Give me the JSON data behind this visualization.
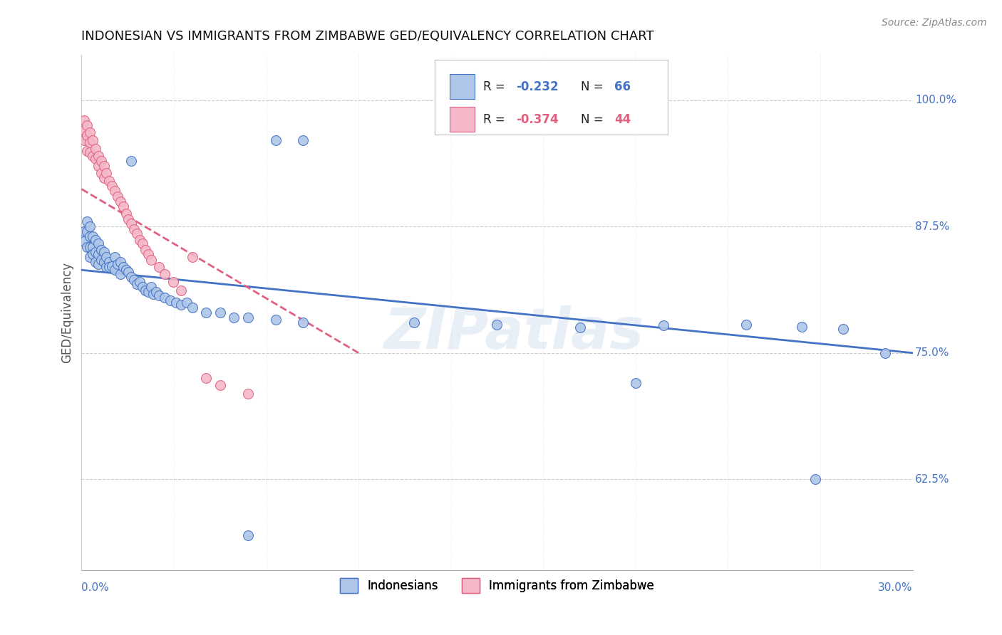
{
  "title": "INDONESIAN VS IMMIGRANTS FROM ZIMBABWE GED/EQUIVALENCY CORRELATION CHART",
  "source": "Source: ZipAtlas.com",
  "ylabel": "GED/Equivalency",
  "ytick_labels": [
    "62.5%",
    "75.0%",
    "87.5%",
    "100.0%"
  ],
  "ytick_values": [
    0.625,
    0.75,
    0.875,
    1.0
  ],
  "xlim": [
    0.0,
    0.3
  ],
  "ylim": [
    0.535,
    1.045
  ],
  "color_blue": "#aec6e8",
  "color_pink": "#f5b8c8",
  "color_blue_dark": "#4472c4",
  "color_pink_dark": "#e06080",
  "watermark": "ZIPatlas",
  "indonesians_x": [
    0.001,
    0.001,
    0.002,
    0.002,
    0.002,
    0.003,
    0.003,
    0.003,
    0.003,
    0.004,
    0.004,
    0.004,
    0.005,
    0.005,
    0.005,
    0.006,
    0.006,
    0.006,
    0.007,
    0.007,
    0.008,
    0.008,
    0.009,
    0.009,
    0.01,
    0.01,
    0.011,
    0.012,
    0.012,
    0.013,
    0.014,
    0.014,
    0.015,
    0.016,
    0.017,
    0.018,
    0.019,
    0.02,
    0.021,
    0.022,
    0.023,
    0.024,
    0.025,
    0.026,
    0.027,
    0.028,
    0.03,
    0.032,
    0.034,
    0.036,
    0.038,
    0.04,
    0.045,
    0.05,
    0.055,
    0.06,
    0.07,
    0.08,
    0.12,
    0.15,
    0.18,
    0.21,
    0.24,
    0.26,
    0.275,
    0.29
  ],
  "indonesians_y": [
    0.87,
    0.86,
    0.88,
    0.87,
    0.855,
    0.875,
    0.865,
    0.855,
    0.845,
    0.865,
    0.855,
    0.848,
    0.862,
    0.85,
    0.84,
    0.858,
    0.848,
    0.838,
    0.852,
    0.842,
    0.85,
    0.84,
    0.845,
    0.835,
    0.84,
    0.835,
    0.836,
    0.845,
    0.832,
    0.838,
    0.84,
    0.828,
    0.835,
    0.832,
    0.83,
    0.825,
    0.822,
    0.818,
    0.82,
    0.815,
    0.812,
    0.81,
    0.815,
    0.808,
    0.81,
    0.807,
    0.805,
    0.802,
    0.8,
    0.798,
    0.8,
    0.795,
    0.79,
    0.79,
    0.785,
    0.785,
    0.783,
    0.78,
    0.78,
    0.778,
    0.775,
    0.777,
    0.778,
    0.776,
    0.774,
    0.75
  ],
  "indonesians_y_special": [
    0.96,
    0.94,
    0.96,
    0.96,
    0.72,
    0.625,
    0.57
  ],
  "indonesians_x_special": [
    0.002,
    0.018,
    0.07,
    0.08,
    0.2,
    0.265,
    0.06
  ],
  "zimbabwe_x": [
    0.001,
    0.001,
    0.001,
    0.002,
    0.002,
    0.002,
    0.003,
    0.003,
    0.003,
    0.004,
    0.004,
    0.005,
    0.005,
    0.006,
    0.006,
    0.007,
    0.007,
    0.008,
    0.008,
    0.009,
    0.01,
    0.011,
    0.012,
    0.013,
    0.014,
    0.015,
    0.016,
    0.017,
    0.018,
    0.019,
    0.02,
    0.021,
    0.022,
    0.023,
    0.024,
    0.025,
    0.028,
    0.03,
    0.033,
    0.036,
    0.04,
    0.045,
    0.05,
    0.06
  ],
  "zimbabwe_y": [
    0.98,
    0.97,
    0.96,
    0.975,
    0.965,
    0.95,
    0.968,
    0.958,
    0.948,
    0.96,
    0.945,
    0.952,
    0.942,
    0.945,
    0.935,
    0.94,
    0.928,
    0.935,
    0.923,
    0.928,
    0.92,
    0.915,
    0.91,
    0.905,
    0.9,
    0.895,
    0.888,
    0.882,
    0.878,
    0.872,
    0.868,
    0.862,
    0.858,
    0.852,
    0.848,
    0.842,
    0.835,
    0.828,
    0.82,
    0.812,
    0.845,
    0.725,
    0.718,
    0.71
  ],
  "blue_trend_x": [
    0.0,
    0.3
  ],
  "blue_trend_y": [
    0.832,
    0.75
  ],
  "pink_trend_x": [
    0.0,
    0.1
  ],
  "pink_trend_y": [
    0.912,
    0.75
  ]
}
